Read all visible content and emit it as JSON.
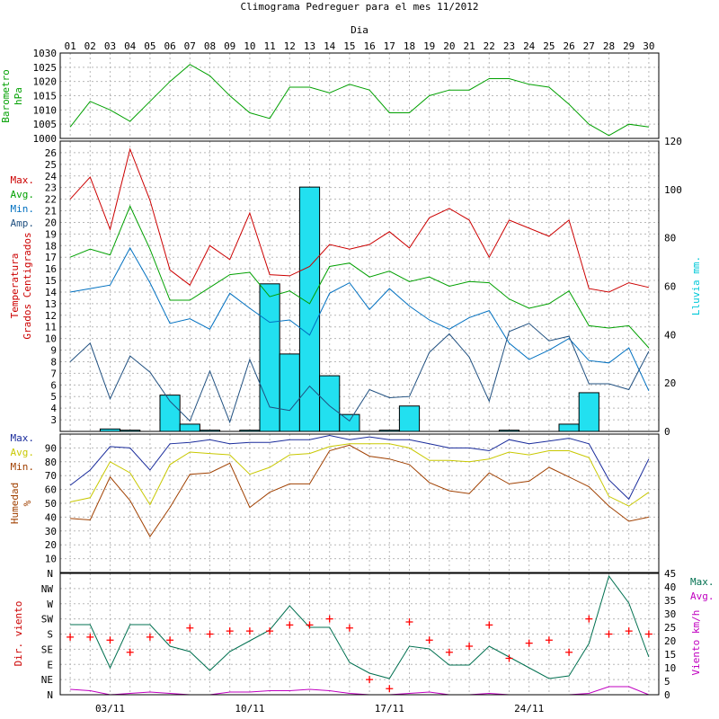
{
  "title": "Climograma Pedreguer para el mes 11/2012",
  "x_axis_title": "Dia",
  "chart_data": [
    {
      "id": "barometer",
      "type": "line",
      "ylabel": [
        "Barometro",
        "hPa"
      ],
      "ylim": [
        1000,
        1030
      ],
      "yticks": [
        1000,
        1005,
        1010,
        1015,
        1020,
        1025,
        1030
      ],
      "series": [
        {
          "color": "#00a000",
          "values": [
            1004,
            1013,
            1010,
            1006,
            1013,
            1020,
            1026,
            1022,
            1015,
            1009,
            1007,
            1018,
            1018,
            1016,
            1019,
            1017,
            1009,
            1009,
            1015,
            1017,
            1017,
            1021,
            1021,
            1019,
            1018,
            1012,
            1005,
            1001,
            1005,
            1004
          ]
        }
      ]
    },
    {
      "id": "temperature",
      "type": "line+bar",
      "ylabel": [
        "Temperatura",
        "Grados Centigrados"
      ],
      "ylabel_color": "#cc0000",
      "ylim": [
        2,
        27
      ],
      "yticks": [
        3,
        4,
        5,
        6,
        7,
        8,
        9,
        10,
        11,
        12,
        13,
        14,
        15,
        16,
        17,
        18,
        19,
        20,
        21,
        22,
        23,
        24,
        25,
        26
      ],
      "legend": [
        {
          "label": "Max.",
          "color": "#cc0000"
        },
        {
          "label": "Avg.",
          "color": "#00a000"
        },
        {
          "label": "Min.",
          "color": "#0070c0"
        },
        {
          "label": "Amp.",
          "color": "#205080"
        }
      ],
      "series": [
        {
          "name": "Max.",
          "color": "#cc0000",
          "values": [
            22,
            23.9,
            19.4,
            26.3,
            21.9,
            15.9,
            14.6,
            18,
            16.8,
            20.8,
            15.5,
            15.4,
            16.2,
            18.1,
            17.7,
            18.1,
            19.2,
            17.8,
            20.4,
            21.2,
            20.2,
            17,
            20.2,
            19.5,
            18.8,
            20.2,
            14.3,
            14,
            14.8,
            14.4
          ]
        },
        {
          "name": "Avg.",
          "color": "#00a000",
          "values": [
            17,
            17.7,
            17.2,
            21.4,
            17.7,
            13.3,
            13.3,
            14.4,
            15.5,
            15.7,
            13.6,
            14.1,
            13,
            16.2,
            16.5,
            15.3,
            15.8,
            14.9,
            15.3,
            14.5,
            14.9,
            14.8,
            13.4,
            12.6,
            13,
            14.1,
            11.1,
            10.9,
            11.1,
            9.2
          ]
        },
        {
          "name": "Min.",
          "color": "#0070c0",
          "values": [
            14,
            14.3,
            14.6,
            17.8,
            14.8,
            11.3,
            11.7,
            10.8,
            13.9,
            12.6,
            11.4,
            11.6,
            10.3,
            13.9,
            14.8,
            12.5,
            14.3,
            12.8,
            11.6,
            10.8,
            11.8,
            12.4,
            9.6,
            8.2,
            9,
            10,
            8.1,
            7.9,
            9.2,
            5.5
          ]
        },
        {
          "name": "Amp.",
          "color": "#205080",
          "values": [
            8,
            9.6,
            4.8,
            8.5,
            7.1,
            4.6,
            2.9,
            7.2,
            2.8,
            8.2,
            4.1,
            3.8,
            5.9,
            4.2,
            2.9,
            5.6,
            4.9,
            5,
            8.8,
            10.4,
            8.4,
            4.6,
            10.6,
            11.3,
            9.8,
            10.2,
            6.1,
            6.1,
            5.6,
            8.9
          ]
        }
      ],
      "rain": {
        "ylabel": "Lluvia mm.",
        "color": "#22e0f0",
        "ylim": [
          0,
          120
        ],
        "yticks": [
          0,
          20,
          40,
          60,
          80,
          100,
          120
        ],
        "values": [
          0,
          0,
          1,
          0.5,
          0,
          15,
          3,
          0.5,
          0,
          0.5,
          61,
          32,
          101,
          23,
          7,
          0,
          0.5,
          10.5,
          0,
          0,
          0,
          0,
          0.5,
          0,
          0,
          3,
          16,
          0,
          0,
          0
        ]
      }
    },
    {
      "id": "humidity",
      "type": "line",
      "ylabel": [
        "Humedad",
        "%"
      ],
      "ylabel_color": "#a04000",
      "ylim": [
        0,
        100
      ],
      "yticks": [
        10,
        20,
        30,
        40,
        50,
        60,
        70,
        80,
        90
      ],
      "legend": [
        {
          "label": "Max.",
          "color": "#1a2c9c"
        },
        {
          "label": "Avg.",
          "color": "#c8c800"
        },
        {
          "label": "Min.",
          "color": "#a04000"
        }
      ],
      "series": [
        {
          "name": "Max.",
          "color": "#1a2c9c",
          "values": [
            63,
            74,
            91,
            90,
            74,
            93,
            94,
            96,
            93,
            94,
            94,
            96,
            96,
            99,
            96,
            98,
            96,
            96,
            93,
            90,
            90,
            88,
            96,
            93,
            95,
            97,
            93,
            67,
            53,
            82
          ]
        },
        {
          "name": "Avg.",
          "color": "#c8c800",
          "values": [
            51,
            54,
            80,
            72,
            49,
            78,
            87,
            86,
            85,
            71,
            76,
            85,
            86,
            91,
            93,
            93,
            93,
            90,
            81,
            81,
            80,
            82,
            87,
            85,
            88,
            88,
            83,
            55,
            48,
            58
          ]
        },
        {
          "name": "Min.",
          "color": "#a04000",
          "values": [
            39,
            38,
            69,
            52,
            26,
            47,
            71,
            72,
            79,
            47,
            58,
            64,
            64,
            88,
            92,
            84,
            82,
            78,
            65,
            59,
            57,
            72,
            64,
            66,
            76,
            69,
            62,
            48,
            37,
            40
          ]
        }
      ]
    },
    {
      "id": "wind",
      "type": "line+scatter",
      "ylabel": "Dir. viento",
      "ylabel_color": "#cc0000",
      "direction_ticks": [
        "N",
        "NE",
        "E",
        "SE",
        "S",
        "SW",
        "W",
        "NW",
        "N"
      ],
      "legend": [
        {
          "label": "Max.",
          "color": "#007050"
        },
        {
          "label": "Avg.",
          "color": "#c000c0"
        }
      ],
      "direction_points": {
        "color": "#ff0000",
        "values": [
          1.9,
          1.9,
          1.8,
          1.4,
          1.9,
          1.8,
          2.2,
          2,
          2.1,
          2.1,
          2.1,
          2.3,
          2.3,
          2.5,
          2.2,
          0.5,
          0.2,
          2.4,
          1.8,
          1.4,
          1.6,
          2.3,
          1.2,
          1.7,
          1.8,
          1.4,
          2.5,
          2,
          2.1,
          2
        ]
      },
      "speed": {
        "ylabel": "Viento km/h",
        "ylabel_color": "#c000c0",
        "ylim": [
          0,
          45
        ],
        "yticks": [
          0,
          5,
          10,
          15,
          20,
          25,
          30,
          35,
          40,
          45
        ],
        "series": [
          {
            "name": "Max.",
            "color": "#007050",
            "values": [
              26,
              26,
              10,
              26,
              26,
              18,
              16,
              9,
              16,
              20,
              24,
              33,
              25,
              25,
              12,
              8,
              6,
              18,
              17,
              11,
              11,
              18,
              14,
              10,
              6,
              7,
              19,
              44,
              34,
              14
            ]
          },
          {
            "name": "Avg.",
            "color": "#c000c0",
            "values": [
              2,
              1.5,
              0,
              0.5,
              1,
              0.5,
              0,
              0,
              1,
              1,
              1.5,
              1.5,
              2,
              1.5,
              0.5,
              0,
              0,
              0.5,
              1,
              0,
              0,
              0.5,
              0,
              0,
              0,
              0,
              0.5,
              3,
              3,
              0
            ]
          }
        ]
      }
    }
  ],
  "days": [
    "01",
    "02",
    "03",
    "04",
    "05",
    "06",
    "07",
    "08",
    "09",
    "10",
    "11",
    "12",
    "13",
    "14",
    "15",
    "16",
    "17",
    "18",
    "19",
    "20",
    "21",
    "22",
    "23",
    "24",
    "25",
    "26",
    "27",
    "28",
    "29",
    "30"
  ],
  "week_labels": [
    {
      "day": 3,
      "label": "03/11"
    },
    {
      "day": 10,
      "label": "10/11"
    },
    {
      "day": 17,
      "label": "17/11"
    },
    {
      "day": 24,
      "label": "24/11"
    }
  ]
}
